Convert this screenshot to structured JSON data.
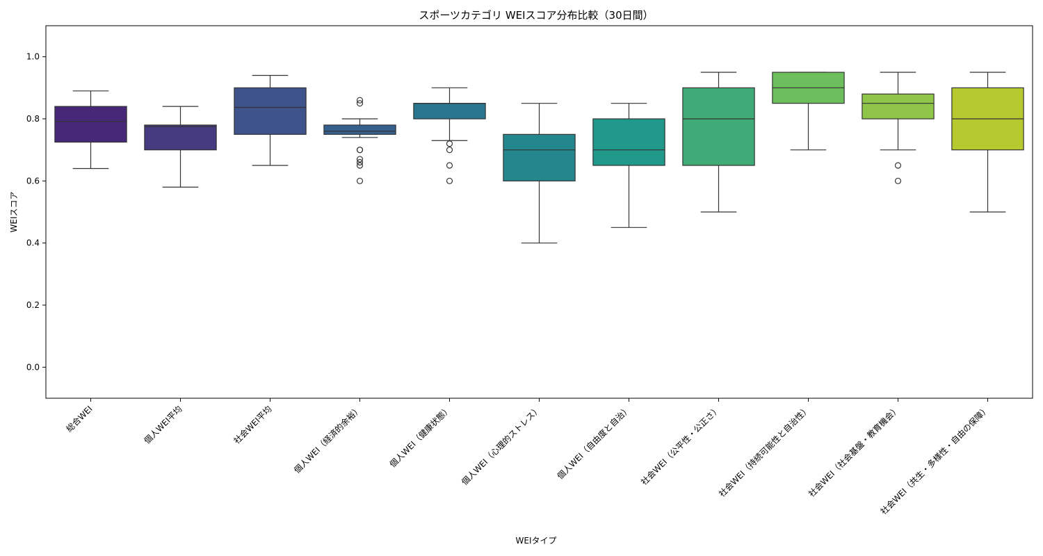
{
  "chart_data": {
    "type": "box",
    "title": "スポーツカテゴリ WEIスコア分布比較（30日間）",
    "xlabel": "WEIタイプ",
    "ylabel": "WEIスコア",
    "ylim": [
      -0.1,
      1.1
    ],
    "yticks": [
      "0.0",
      "0.2",
      "0.4",
      "0.6",
      "0.8",
      "1.0"
    ],
    "grid": false,
    "legend": "none",
    "categories": [
      "総合WEI",
      "個人WEI平均",
      "社会WEI平均",
      "個人WEI（経済的余裕）",
      "個人WEI（健康状態）",
      "個人WEI（心理的ストレス）",
      "個人WEI（自由度と自治）",
      "社会WEI（公平性・公正さ）",
      "社会WEI（持続可能性と自治性）",
      "社会WEI（社会基盤・教育機会）",
      "社会WEI（共生・多様性・自由の保障）"
    ],
    "colors": [
      "#472778",
      "#463a80",
      "#3e528b",
      "#35608d",
      "#2a768e",
      "#24878e",
      "#21998a",
      "#3fab76",
      "#6cbf5c",
      "#8fc64a",
      "#b6c92f"
    ],
    "boxes": [
      {
        "whislo": 0.64,
        "q1": 0.725,
        "med": 0.792,
        "q3": 0.84,
        "whishi": 0.89,
        "fliers": []
      },
      {
        "whislo": 0.58,
        "q1": 0.7,
        "med": 0.775,
        "q3": 0.78,
        "whishi": 0.84,
        "fliers": []
      },
      {
        "whislo": 0.65,
        "q1": 0.75,
        "med": 0.837,
        "q3": 0.9,
        "whishi": 0.94,
        "fliers": []
      },
      {
        "whislo": 0.74,
        "q1": 0.75,
        "med": 0.76,
        "q3": 0.78,
        "whishi": 0.8,
        "fliers": [
          0.86,
          0.85,
          0.7,
          0.7,
          0.67,
          0.66,
          0.65,
          0.6
        ]
      },
      {
        "whislo": 0.73,
        "q1": 0.8,
        "med": 0.85,
        "q3": 0.85,
        "whishi": 0.9,
        "fliers": [
          0.72,
          0.7,
          0.65,
          0.6
        ]
      },
      {
        "whislo": 0.4,
        "q1": 0.6,
        "med": 0.7,
        "q3": 0.75,
        "whishi": 0.85,
        "fliers": []
      },
      {
        "whislo": 0.45,
        "q1": 0.65,
        "med": 0.7,
        "q3": 0.8,
        "whishi": 0.85,
        "fliers": []
      },
      {
        "whislo": 0.5,
        "q1": 0.65,
        "med": 0.8,
        "q3": 0.9,
        "whishi": 0.95,
        "fliers": []
      },
      {
        "whislo": 0.7,
        "q1": 0.85,
        "med": 0.9,
        "q3": 0.95,
        "whishi": 0.95,
        "fliers": []
      },
      {
        "whislo": 0.7,
        "q1": 0.8,
        "med": 0.85,
        "q3": 0.88,
        "whishi": 0.95,
        "fliers": [
          0.65,
          0.6
        ]
      },
      {
        "whislo": 0.5,
        "q1": 0.7,
        "med": 0.8,
        "q3": 0.9,
        "whishi": 0.95,
        "fliers": []
      }
    ]
  }
}
